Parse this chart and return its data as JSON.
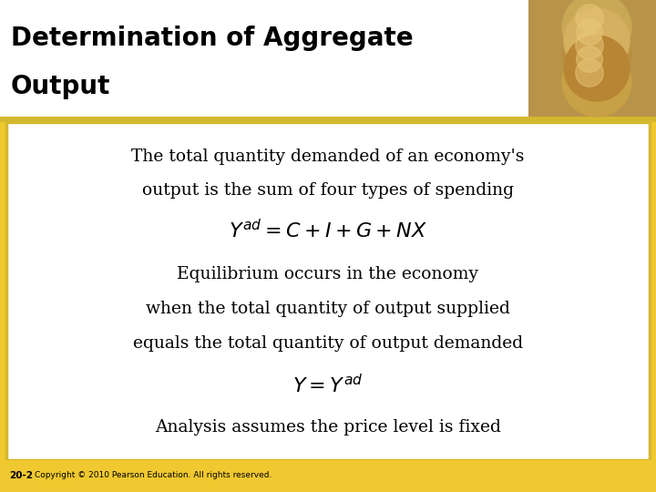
{
  "title_line1": "Determination of Aggregate",
  "title_line2": "Output",
  "title_text_color": "#000000",
  "content_bg_color": "#FFFFFF",
  "border_color": "#D4B830",
  "slide_bg_color": "#F0C830",
  "title_area_color": "#FFFFFF",
  "line1": "The total quantity demanded of an economy's",
  "line2": "output is the sum of four types of spending",
  "eq1": "$Y^{ad} = C + I + G + NX$",
  "line3": "Equilibrium occurs in the economy",
  "line4": "when the total quantity of output supplied",
  "line5": "equals the total quantity of output demanded",
  "eq2": "$Y = Y^{ad}$",
  "line6": "Analysis assumes the price level is fixed",
  "copyright": "Copyright © 2010 Pearson Education. All rights reserved.",
  "slide_number": "20-2",
  "content_font_size": 13.5,
  "eq_font_size": 16,
  "title_font_size": 20
}
